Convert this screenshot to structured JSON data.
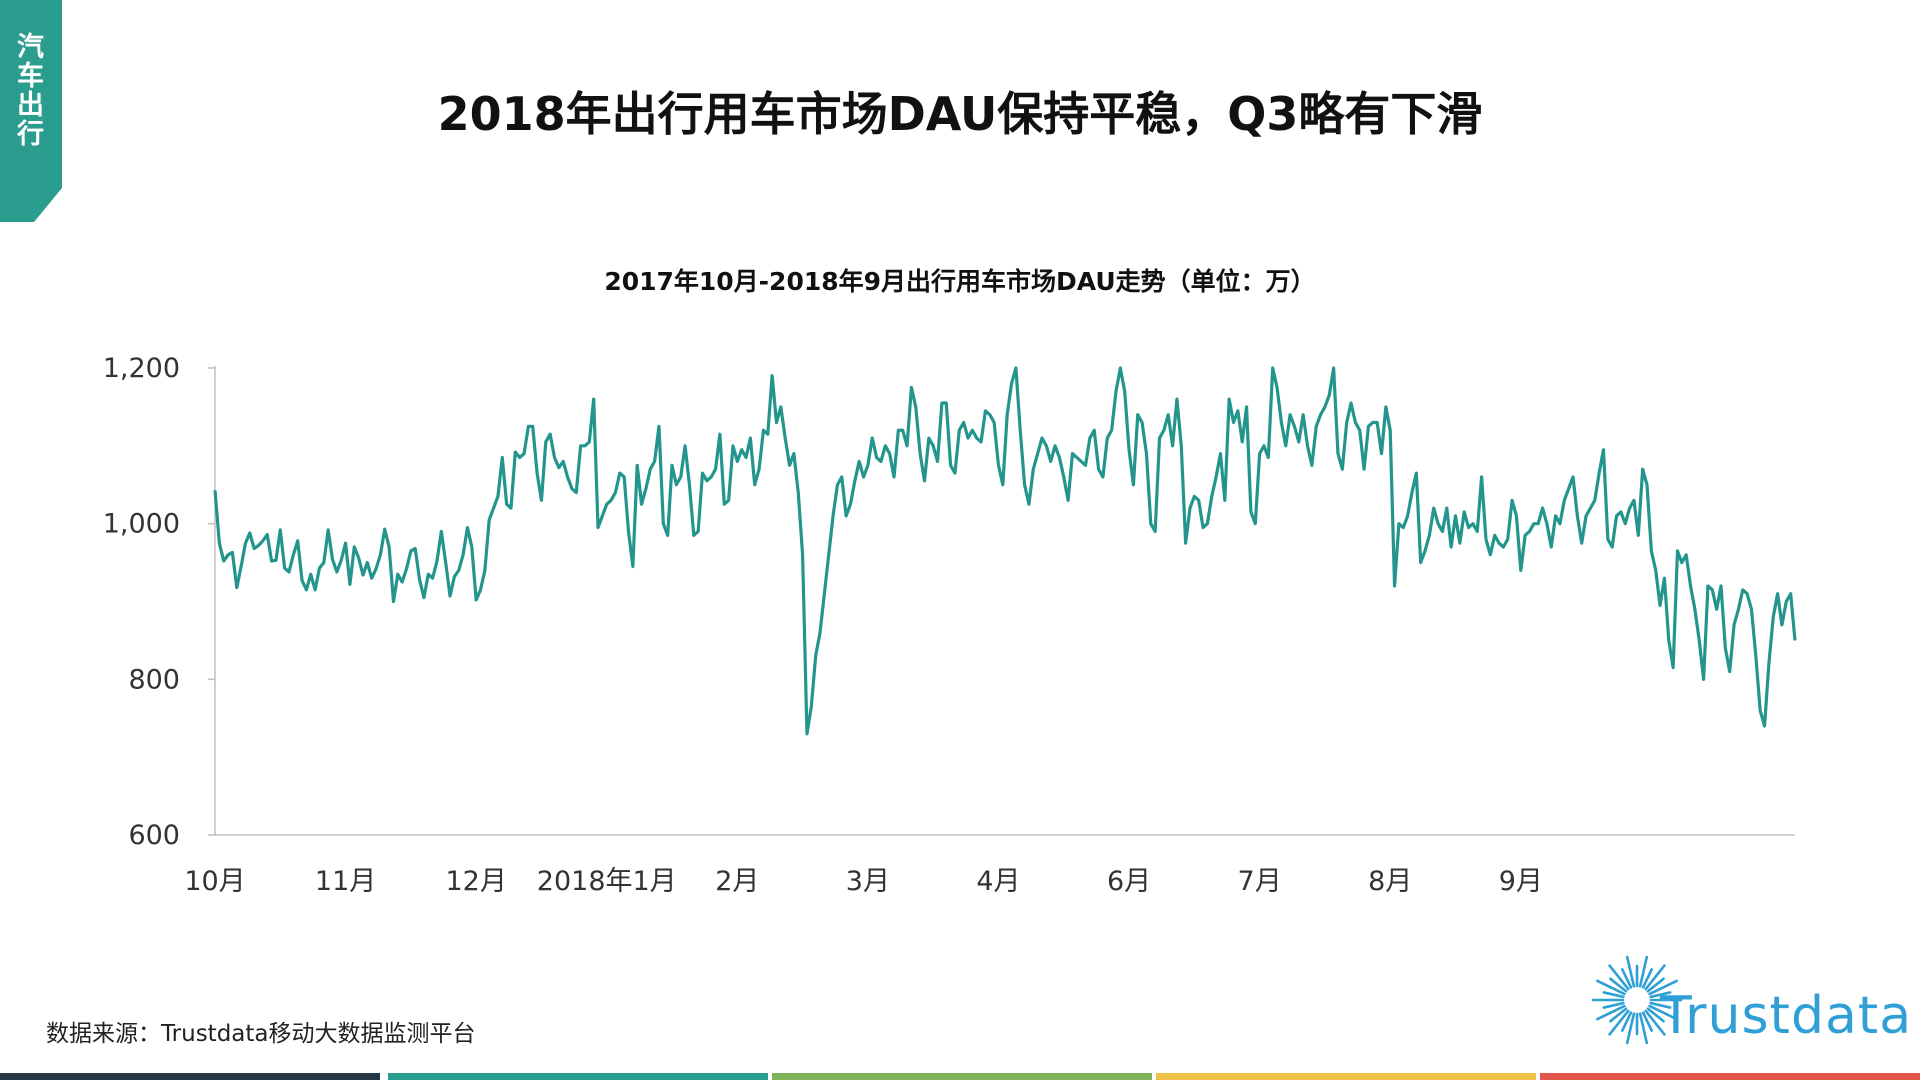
{
  "side_tab": {
    "label": "汽车出行"
  },
  "title": "2018年出行用车市场DAU保持平稳，Q3略有下滑",
  "chart_data": {
    "type": "line",
    "title": "2017年10月-2018年9月出行用车市场DAU走势（单位：万）",
    "xlabel": "",
    "ylabel": "",
    "ylim": [
      600,
      1200
    ],
    "y_ticks": [
      "1,200",
      "1,000",
      "800",
      "600"
    ],
    "y_tick_values": [
      1200,
      1000,
      800,
      600
    ],
    "x_ticks": [
      "10月",
      "11月",
      "12月",
      "2018年1月",
      "2月",
      "3月",
      "4月",
      "6月",
      "7月",
      "8月",
      "9月"
    ],
    "x_tick_index": [
      0,
      30,
      60,
      90,
      120,
      150,
      180,
      210,
      240,
      270,
      300
    ],
    "grid": false,
    "color": "#23958d",
    "series": [
      {
        "values": [
          1043,
          975,
          952,
          960,
          963,
          918,
          945,
          975,
          988,
          968,
          972,
          978,
          986,
          952,
          953,
          992,
          943,
          938,
          960,
          978,
          927,
          915,
          935,
          915,
          943,
          950,
          992,
          954,
          938,
          953,
          975,
          922,
          970,
          956,
          934,
          950,
          930,
          942,
          960,
          993,
          970,
          900,
          935,
          925,
          942,
          965,
          968,
          928,
          905,
          935,
          930,
          952,
          990,
          950,
          907,
          932,
          940,
          960,
          995,
          970,
          902,
          915,
          940,
          1005,
          1020,
          1035,
          1085,
          1025,
          1020,
          1092,
          1085,
          1090,
          1125,
          1125,
          1065,
          1030,
          1105,
          1115,
          1085,
          1072,
          1080,
          1060,
          1045,
          1040,
          1100,
          1100,
          1105,
          1160,
          995,
          1010,
          1025,
          1030,
          1040,
          1065,
          1060,
          990,
          945,
          1075,
          1025,
          1045,
          1070,
          1080,
          1125,
          1000,
          985,
          1075,
          1050,
          1060,
          1100,
          1050,
          985,
          990,
          1065,
          1055,
          1060,
          1070,
          1115,
          1025,
          1030,
          1100,
          1080,
          1095,
          1085,
          1110,
          1050,
          1070,
          1120,
          1115,
          1190,
          1130,
          1150,
          1110,
          1075,
          1090,
          1040,
          960,
          730,
          765,
          830,
          860,
          910,
          960,
          1010,
          1050,
          1060,
          1010,
          1025,
          1055,
          1080,
          1060,
          1075,
          1110,
          1085,
          1080,
          1100,
          1090,
          1060,
          1120,
          1120,
          1100,
          1175,
          1150,
          1090,
          1055,
          1110,
          1100,
          1080,
          1155,
          1155,
          1075,
          1065,
          1120,
          1130,
          1110,
          1120,
          1110,
          1105,
          1145,
          1140,
          1130,
          1075,
          1050,
          1140,
          1180,
          1200,
          1120,
          1050,
          1025,
          1070,
          1090,
          1110,
          1100,
          1080,
          1100,
          1085,
          1060,
          1030,
          1090,
          1085,
          1080,
          1075,
          1110,
          1120,
          1070,
          1060,
          1110,
          1120,
          1170,
          1200,
          1170,
          1095,
          1050,
          1140,
          1130,
          1090,
          1000,
          990,
          1110,
          1120,
          1140,
          1100,
          1160,
          1100,
          975,
          1020,
          1035,
          1030,
          995,
          1000,
          1035,
          1060,
          1090,
          1030,
          1160,
          1130,
          1145,
          1105,
          1150,
          1015,
          1000,
          1090,
          1100,
          1085,
          1200,
          1175,
          1130,
          1100,
          1140,
          1125,
          1105,
          1140,
          1100,
          1075,
          1125,
          1140,
          1150,
          1165,
          1200,
          1090,
          1070,
          1130,
          1155,
          1130,
          1120,
          1070,
          1125,
          1130,
          1130,
          1090,
          1150,
          1120,
          920,
          1000,
          995,
          1010,
          1040,
          1065,
          950,
          965,
          985,
          1020,
          1000,
          990,
          1020,
          970,
          1010,
          975,
          1015,
          995,
          1000,
          990,
          1060,
          980,
          960,
          985,
          975,
          970,
          980,
          1030,
          1010,
          940,
          985,
          990,
          1000,
          1000,
          1020,
          1000,
          970,
          1010,
          1000,
          1030,
          1045,
          1060,
          1010,
          975,
          1010,
          1020,
          1030,
          1065,
          1095,
          980,
          970,
          1010,
          1015,
          1000,
          1020,
          1030,
          985,
          1070,
          1050,
          965,
          940,
          895,
          930,
          850,
          815,
          965,
          950,
          960,
          920,
          890,
          850,
          800,
          920,
          915,
          890,
          920,
          840,
          810,
          870,
          890,
          915,
          910,
          890,
          830,
          760,
          740,
          820,
          880,
          910,
          870,
          900,
          910,
          850
        ]
      }
    ]
  },
  "footnote": "数据来源：Trustdata移动大数据监测平台",
  "logo": {
    "text": "Trustdata",
    "color": "#2f9fd6"
  },
  "bottom_bar_colors": [
    "#263746",
    "#2a9d8f",
    "#7fb35a",
    "#f0c24a",
    "#e2564b"
  ]
}
